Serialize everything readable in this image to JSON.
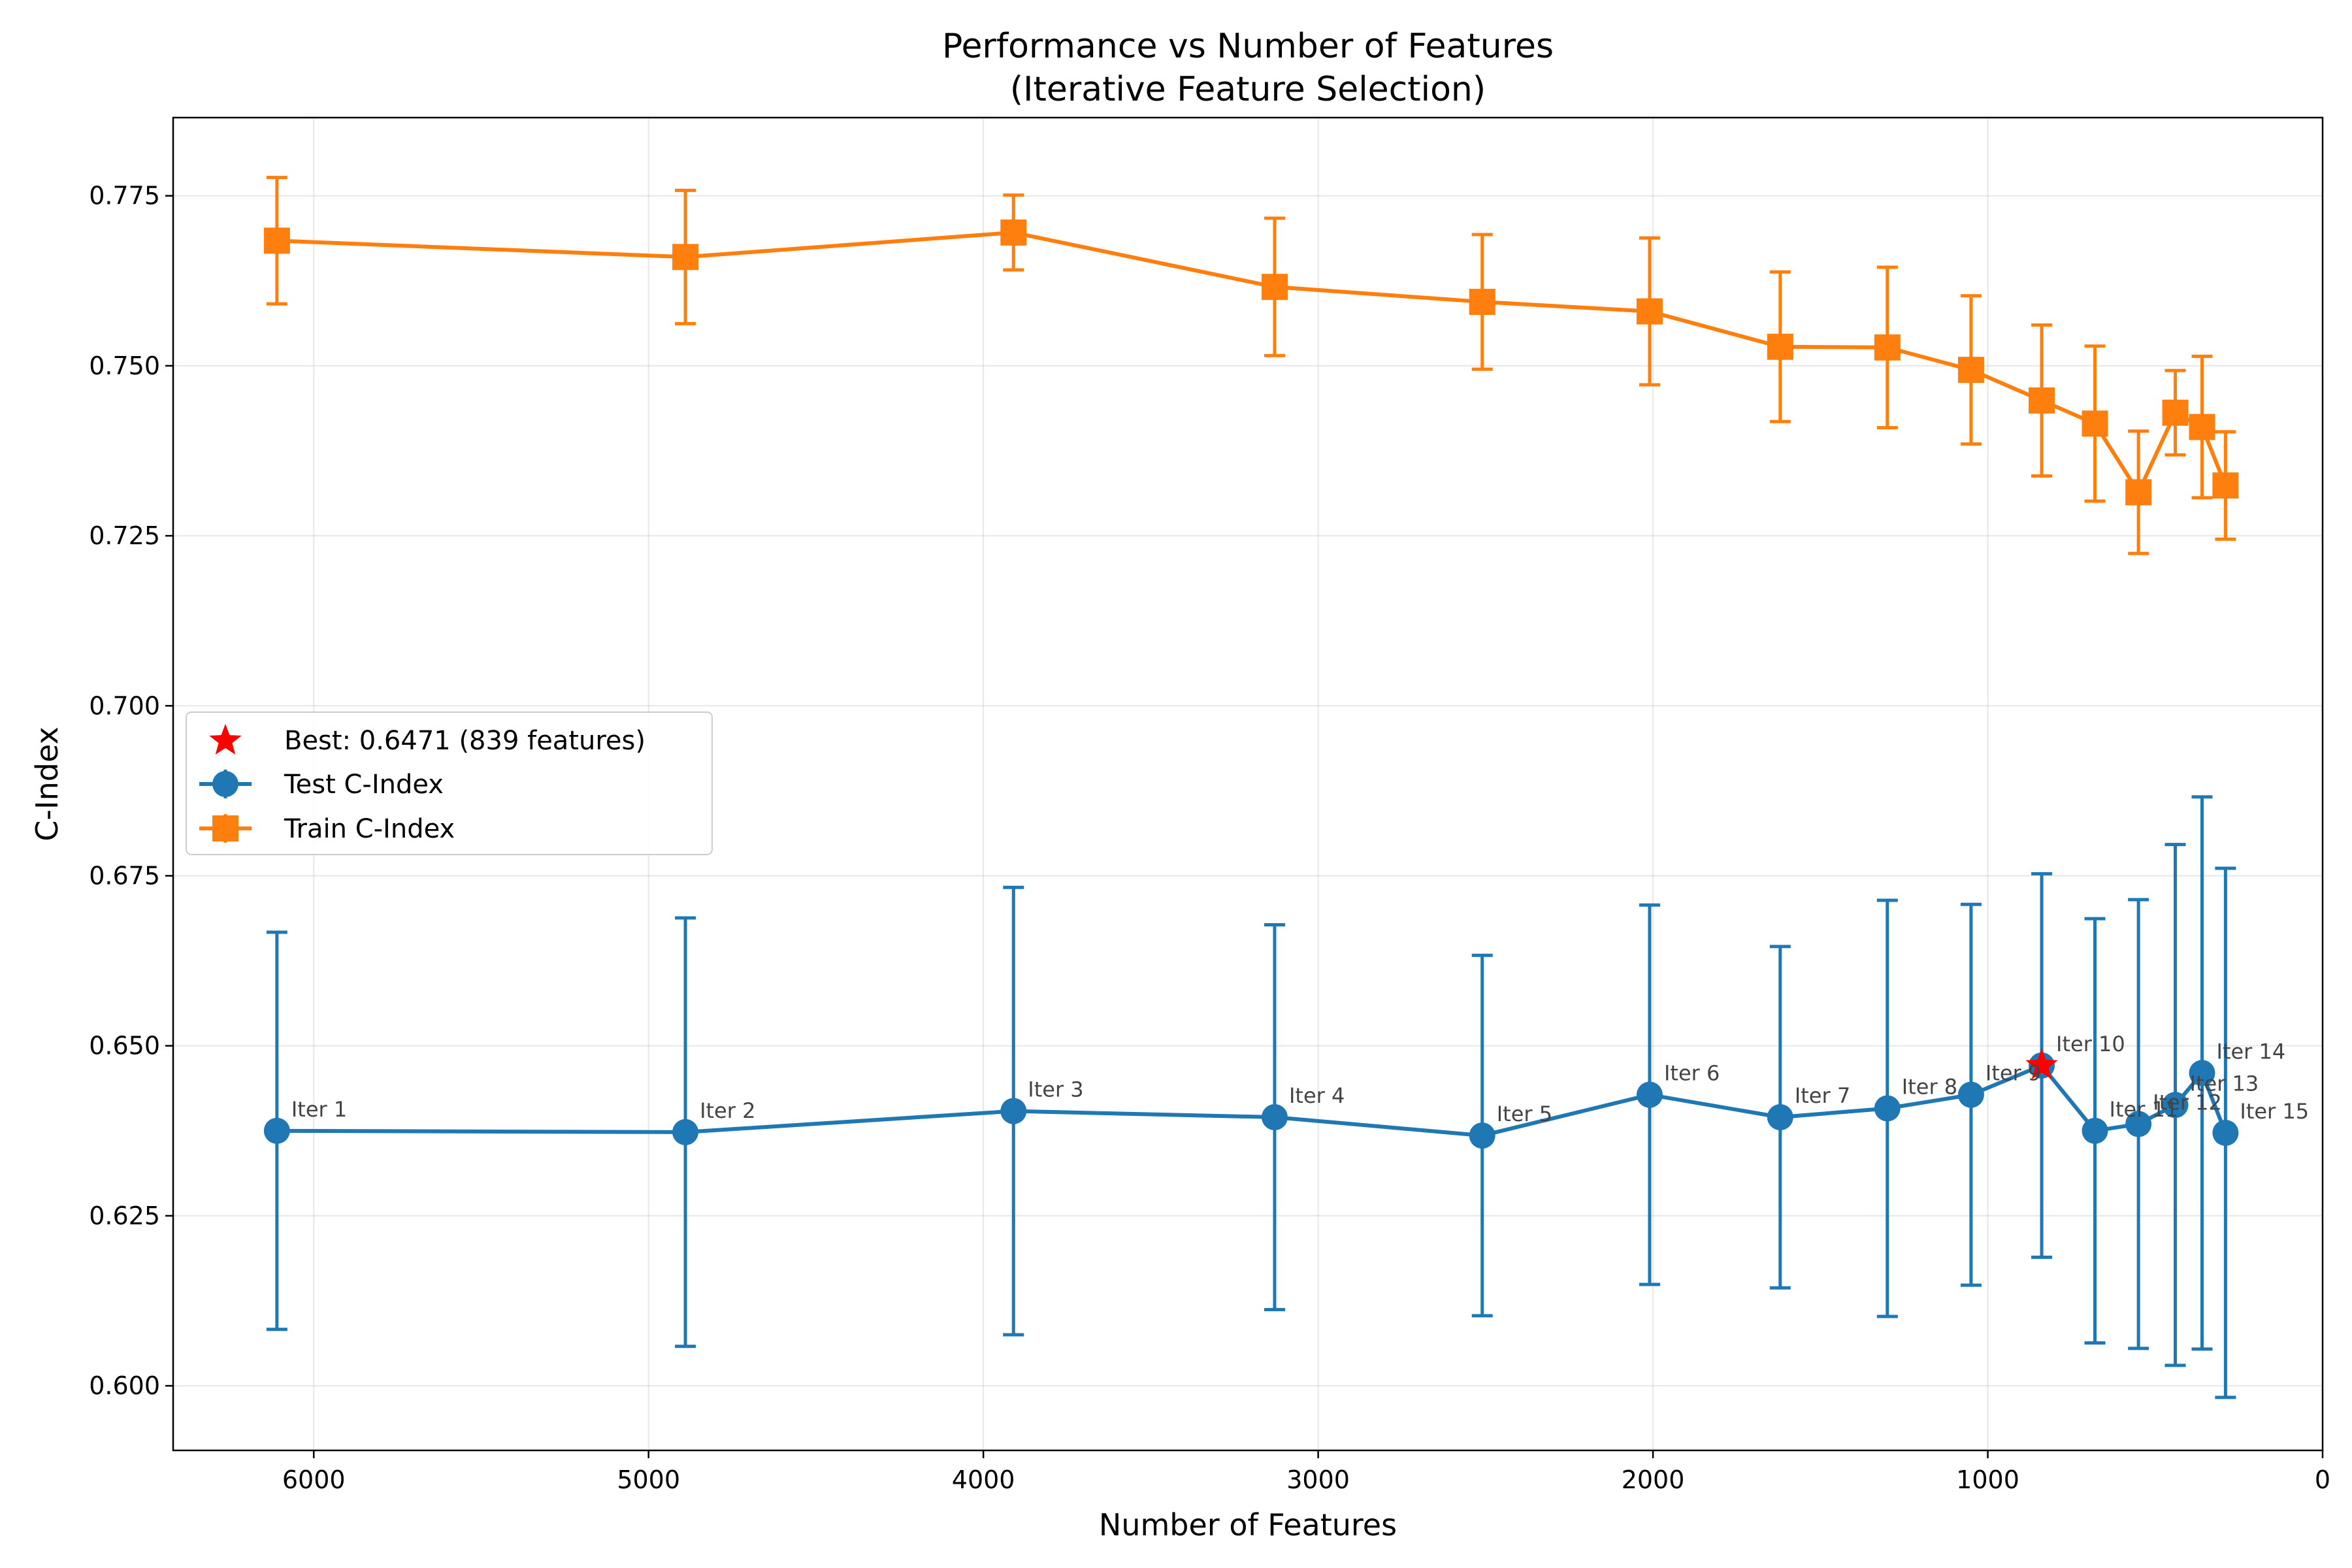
{
  "chart_data": {
    "type": "line",
    "title_line1": "Performance vs Number of Features",
    "title_line2": "(Iterative Feature Selection)",
    "xlabel": "Number of Features",
    "ylabel": "C-Index",
    "xlim": [
      6420,
      0
    ],
    "ylim": [
      0.5905,
      0.7865
    ],
    "x_inverted": true,
    "grid": true,
    "legend_position": "center-left",
    "x_ticks": [
      6000,
      5000,
      4000,
      3000,
      2000,
      1000,
      0
    ],
    "y_ticks": [
      0.6,
      0.625,
      0.65,
      0.675,
      0.7,
      0.725,
      0.75,
      0.775
    ],
    "x_tick_labels": [
      "6000",
      "5000",
      "4000",
      "3000",
      "2000",
      "1000",
      "0"
    ],
    "y_tick_labels": [
      "0.600",
      "0.625",
      "0.650",
      "0.675",
      "0.700",
      "0.725",
      "0.750",
      "0.775"
    ],
    "x": [
      6110,
      4890,
      3910,
      3130,
      2510,
      2010,
      1620,
      1300,
      1050,
      839,
      680,
      550,
      440,
      360,
      290
    ],
    "iteration_labels": [
      "Iter 1",
      "Iter 2",
      "Iter 3",
      "Iter 4",
      "Iter 5",
      "Iter 6",
      "Iter 7",
      "Iter 8",
      "Iter 9",
      "Iter 10",
      "Iter 11",
      "Iter 12",
      "Iter 13",
      "Iter 14",
      "Iter 15"
    ],
    "series": [
      {
        "name": "Test C-Index",
        "color": "#1f77b4",
        "marker": "circle",
        "values": [
          0.6375,
          0.6373,
          0.6404,
          0.6395,
          0.6368,
          0.6428,
          0.6395,
          0.6408,
          0.6428,
          0.6471,
          0.6375,
          0.6385,
          0.6413,
          0.646,
          0.6372
        ],
        "errors": [
          0.0292,
          0.0315,
          0.0329,
          0.0283,
          0.0265,
          0.0279,
          0.0251,
          0.0306,
          0.028,
          0.0282,
          0.0312,
          0.033,
          0.0383,
          0.0406,
          0.0389
        ]
      },
      {
        "name": "Train C-Index",
        "color": "#ff7f0e",
        "marker": "square",
        "values": [
          0.7684,
          0.766,
          0.7696,
          0.7616,
          0.7594,
          0.758,
          0.7528,
          0.7527,
          0.7494,
          0.7449,
          0.7415,
          0.7314,
          0.7431,
          0.741,
          0.7324
        ],
        "errors": [
          0.0093,
          0.0098,
          0.0055,
          0.0101,
          0.0099,
          0.0108,
          0.011,
          0.0118,
          0.0109,
          0.0111,
          0.0114,
          0.009,
          0.0062,
          0.0104,
          0.0079
        ]
      }
    ],
    "best": {
      "label": "Best: 0.6471 (839 features)",
      "x": 839,
      "y": 0.6471,
      "color": "#ff0000",
      "marker": "star"
    }
  }
}
